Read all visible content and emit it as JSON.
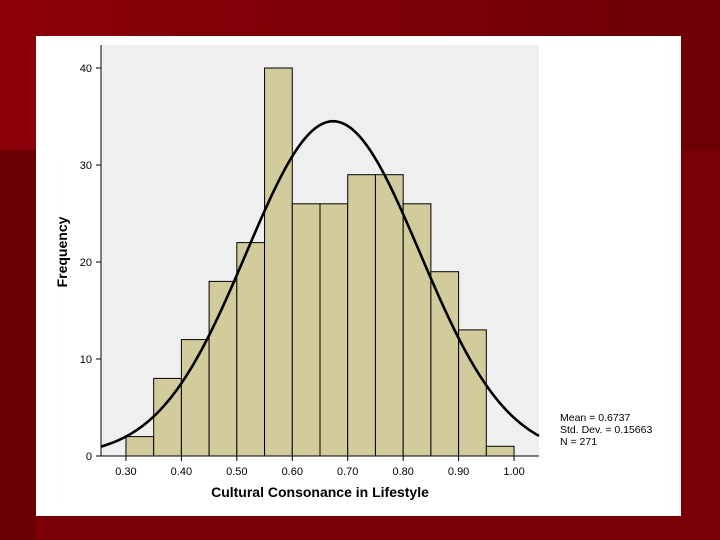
{
  "chart_data": {
    "type": "bar",
    "subtype": "histogram",
    "xlabel": "Cultural Consonance in Lifestyle",
    "ylabel": "Frequency",
    "xlim": [
      0.255,
      1.045
    ],
    "ylim": [
      0,
      40
    ],
    "x_ticks": [
      "0.30",
      "0.40",
      "0.50",
      "0.60",
      "0.70",
      "0.80",
      "0.90",
      "1.00"
    ],
    "y_ticks": [
      "0",
      "10",
      "20",
      "30",
      "40"
    ],
    "bin_width": 0.05,
    "bins": [
      {
        "start": 0.3,
        "end": 0.35,
        "count": 2
      },
      {
        "start": 0.35,
        "end": 0.4,
        "count": 8
      },
      {
        "start": 0.4,
        "end": 0.45,
        "count": 12
      },
      {
        "start": 0.45,
        "end": 0.5,
        "count": 18
      },
      {
        "start": 0.5,
        "end": 0.55,
        "count": 22
      },
      {
        "start": 0.55,
        "end": 0.6,
        "count": 40
      },
      {
        "start": 0.6,
        "end": 0.65,
        "count": 26
      },
      {
        "start": 0.65,
        "end": 0.7,
        "count": 26
      },
      {
        "start": 0.7,
        "end": 0.75,
        "count": 29
      },
      {
        "start": 0.75,
        "end": 0.8,
        "count": 29
      },
      {
        "start": 0.8,
        "end": 0.85,
        "count": 26
      },
      {
        "start": 0.85,
        "end": 0.9,
        "count": 19
      },
      {
        "start": 0.9,
        "end": 0.95,
        "count": 13
      },
      {
        "start": 0.95,
        "end": 1.0,
        "count": 1
      }
    ],
    "normal_curve": {
      "mean": 0.6737,
      "std": 0.15663,
      "n": 271
    },
    "stats_text": [
      "Mean = 0.6737",
      "Std. Dev. = 0.15663",
      "N = 271"
    ],
    "colors": {
      "bar_fill": "#d2cc9c",
      "bar_stroke": "#000000",
      "plot_background": "#efefef",
      "curve": "#000000"
    },
    "grid": false,
    "legend": "none"
  }
}
